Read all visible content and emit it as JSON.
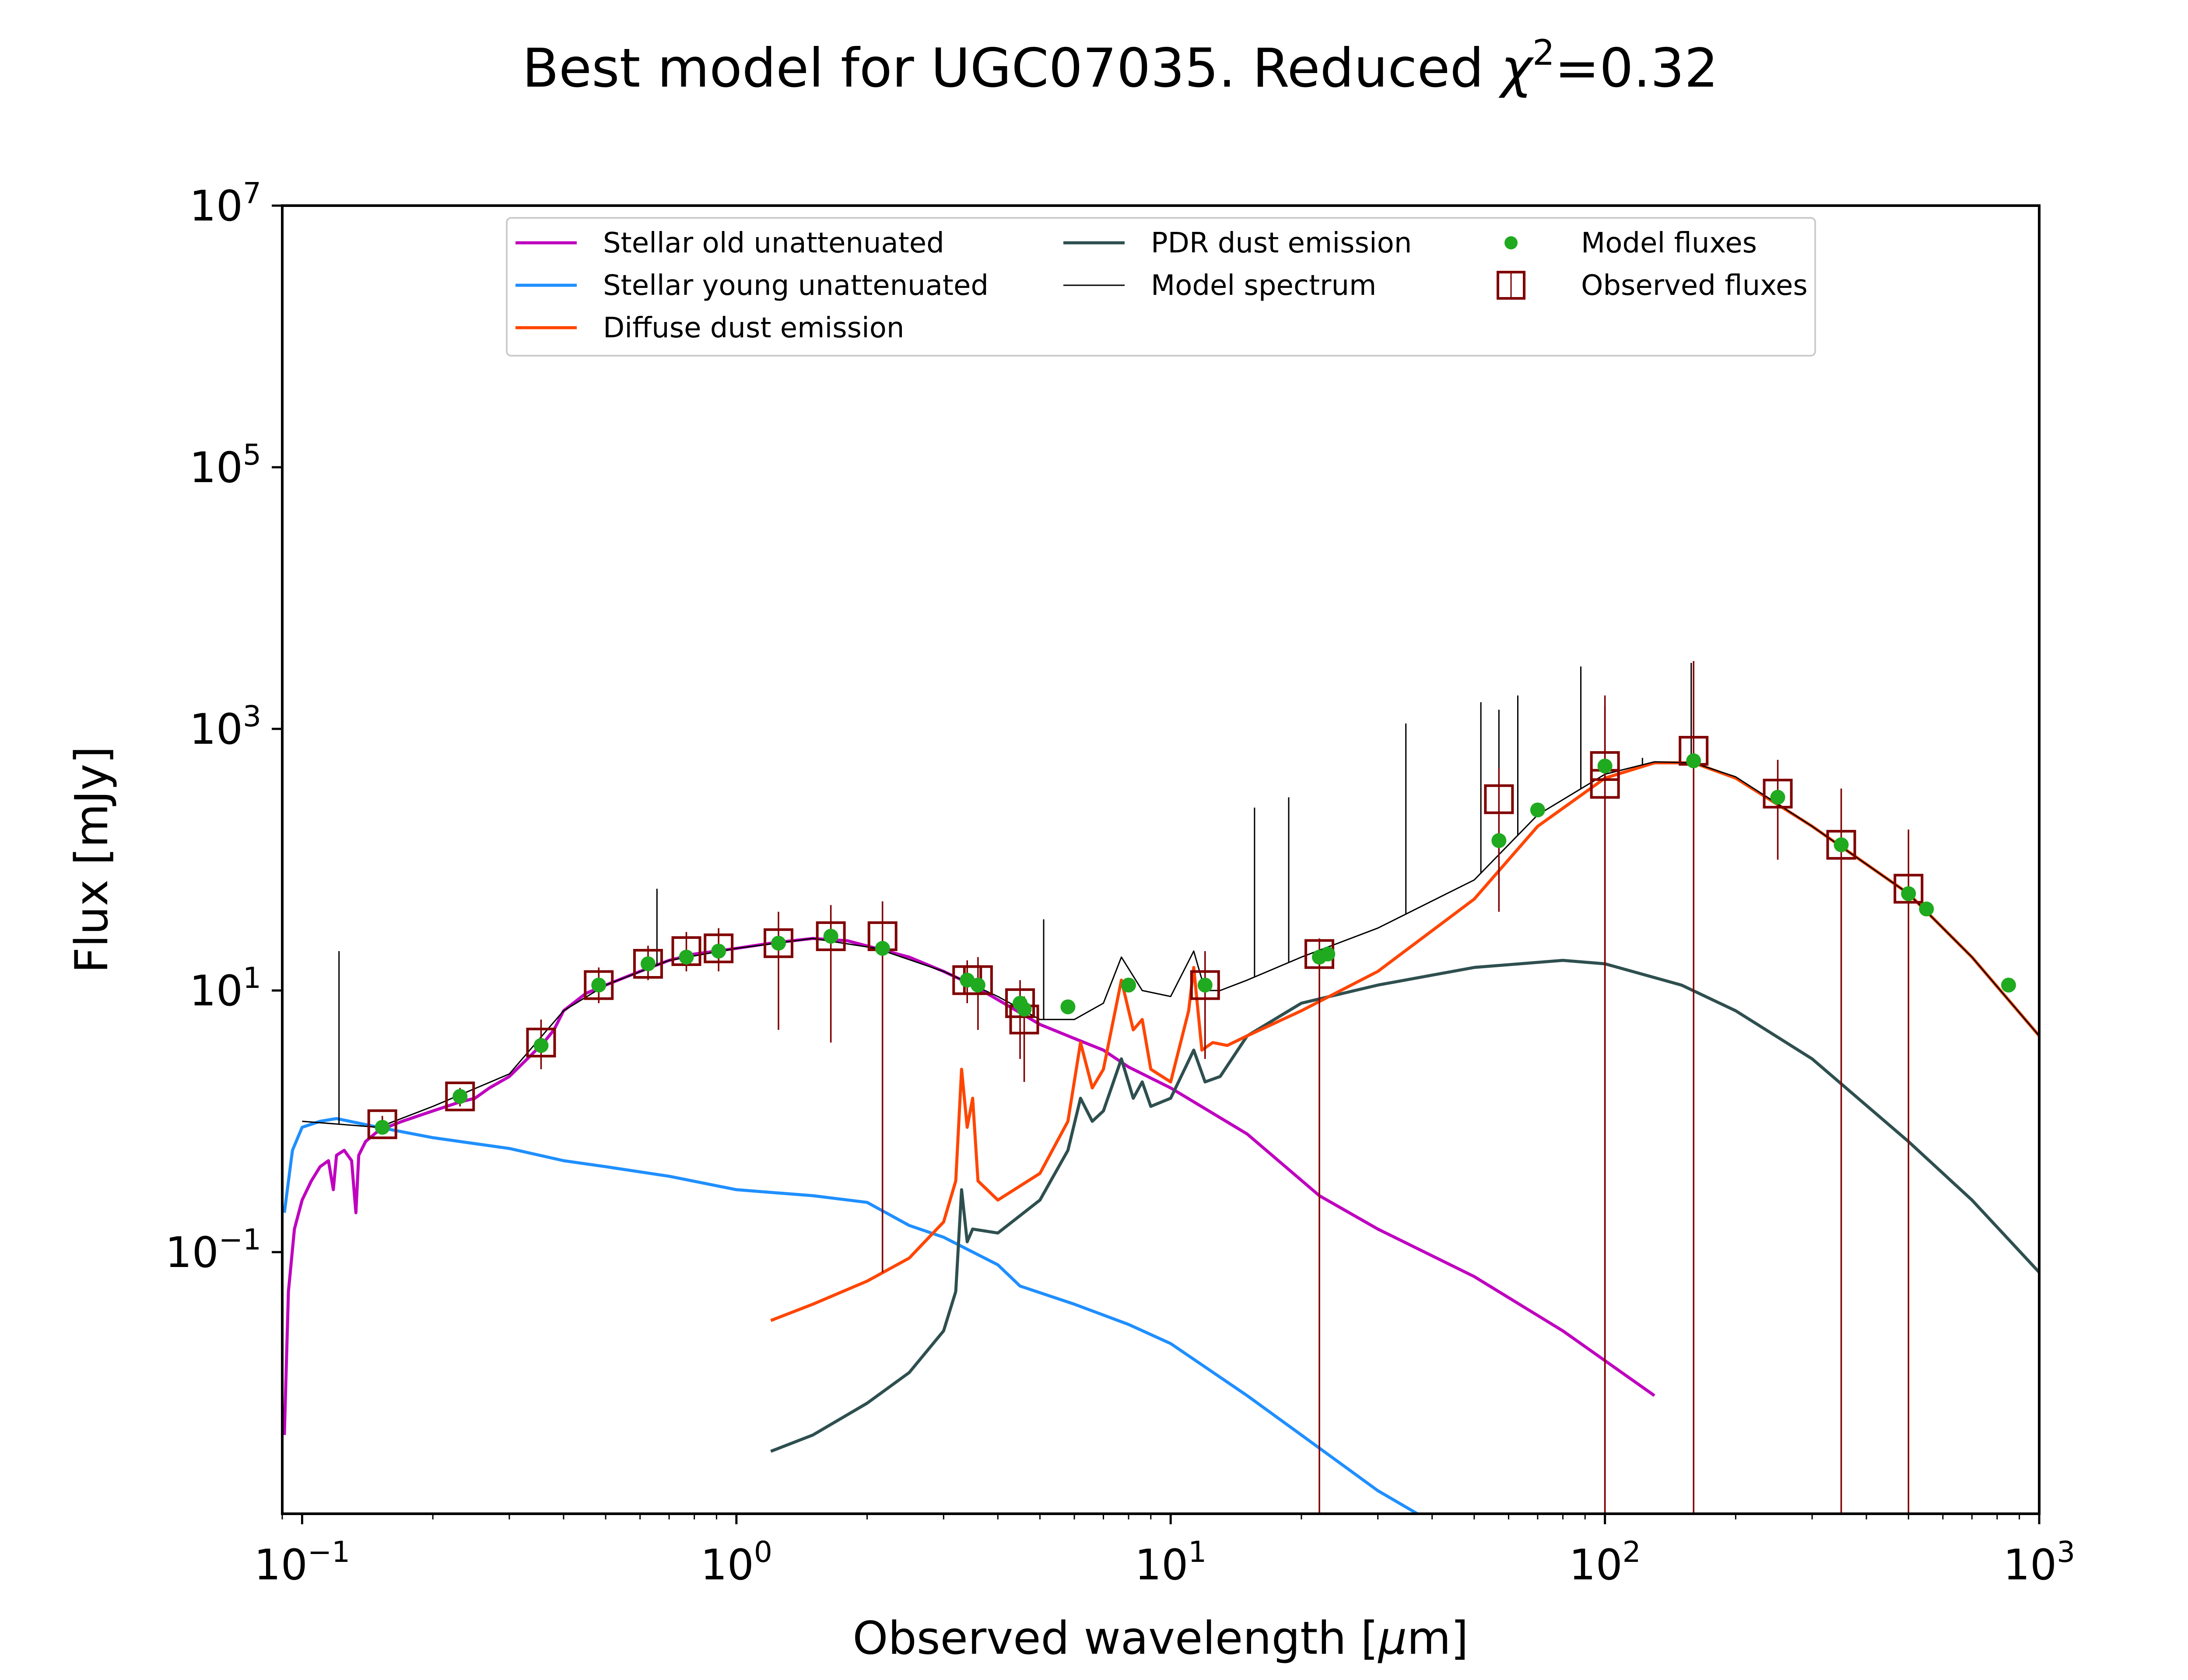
{
  "chart_data": {
    "type": "line",
    "title": "Best model for UGC07035. Reduced χ²=0.32",
    "title_parts": {
      "prefix": "Best model for UGC07035. Reduced ",
      "chi": "χ",
      "sup": "2",
      "suffix": "=0.32"
    },
    "xlabel": "Observed wavelength [μm]",
    "xlabel_parts": {
      "prefix": "Observed wavelength [",
      "mu": "μ",
      "suffix": "m]"
    },
    "ylabel": "Flux [mJy]",
    "xscale": "log",
    "yscale": "log",
    "xlim": [
      0.09,
      1000
    ],
    "ylim": [
      0.001,
      10000000
    ],
    "grid": false,
    "legend_placement": "top-center",
    "x_ticks": [
      {
        "base": "10",
        "exp": "−1",
        "value": 0.1
      },
      {
        "base": "10",
        "exp": "0",
        "value": 1
      },
      {
        "base": "10",
        "exp": "1",
        "value": 10
      },
      {
        "base": "10",
        "exp": "2",
        "value": 100
      },
      {
        "base": "10",
        "exp": "3",
        "value": 1000
      }
    ],
    "y_ticks": [
      {
        "base": "10",
        "exp": "−1",
        "value": 0.1
      },
      {
        "base": "10",
        "exp": "1",
        "value": 10
      },
      {
        "base": "10",
        "exp": "3",
        "value": 1000
      },
      {
        "base": "10",
        "exp": "5",
        "value": 100000
      },
      {
        "base": "10",
        "exp": "7",
        "value": 10000000
      }
    ],
    "series": [
      {
        "name": "Stellar old unattenuated",
        "kind": "line",
        "color": "#bf00bf",
        "points": [
          [
            0.091,
            0.004
          ],
          [
            0.093,
            0.05
          ],
          [
            0.096,
            0.15
          ],
          [
            0.1,
            0.25
          ],
          [
            0.105,
            0.35
          ],
          [
            0.11,
            0.45
          ],
          [
            0.115,
            0.5
          ],
          [
            0.118,
            0.3
          ],
          [
            0.12,
            0.55
          ],
          [
            0.125,
            0.6
          ],
          [
            0.13,
            0.5
          ],
          [
            0.133,
            0.2
          ],
          [
            0.135,
            0.55
          ],
          [
            0.14,
            0.7
          ],
          [
            0.15,
            0.85
          ],
          [
            0.17,
            1.0
          ],
          [
            0.2,
            1.2
          ],
          [
            0.23,
            1.4
          ],
          [
            0.25,
            1.5
          ],
          [
            0.27,
            1.8
          ],
          [
            0.3,
            2.2
          ],
          [
            0.33,
            3.0
          ],
          [
            0.36,
            4.0
          ],
          [
            0.38,
            5.0
          ],
          [
            0.4,
            7.0
          ],
          [
            0.45,
            9.5
          ],
          [
            0.5,
            11
          ],
          [
            0.6,
            14
          ],
          [
            0.7,
            17
          ],
          [
            0.8,
            19
          ],
          [
            1.0,
            21
          ],
          [
            1.2,
            23
          ],
          [
            1.5,
            25
          ],
          [
            1.8,
            24
          ],
          [
            2.1,
            21
          ],
          [
            2.5,
            18
          ],
          [
            3.0,
            14
          ],
          [
            3.5,
            11
          ],
          [
            4.0,
            8.5
          ],
          [
            5.0,
            5.5
          ],
          [
            6.0,
            4.3
          ],
          [
            7.0,
            3.5
          ],
          [
            8.0,
            2.6
          ],
          [
            10,
            1.8
          ],
          [
            15,
            0.8
          ],
          [
            22,
            0.27
          ],
          [
            30,
            0.15
          ],
          [
            50,
            0.065
          ],
          [
            80,
            0.025
          ],
          [
            130,
            0.008
          ]
        ]
      },
      {
        "name": "Stellar young unattenuated",
        "kind": "line",
        "color": "#1f8fff",
        "points": [
          [
            0.091,
            0.2
          ],
          [
            0.095,
            0.6
          ],
          [
            0.1,
            0.9
          ],
          [
            0.11,
            1.0
          ],
          [
            0.12,
            1.05
          ],
          [
            0.15,
            0.9
          ],
          [
            0.2,
            0.75
          ],
          [
            0.3,
            0.62
          ],
          [
            0.4,
            0.5
          ],
          [
            0.5,
            0.45
          ],
          [
            0.7,
            0.38
          ],
          [
            1.0,
            0.3
          ],
          [
            1.5,
            0.27
          ],
          [
            2.0,
            0.24
          ],
          [
            2.5,
            0.16
          ],
          [
            3.0,
            0.13
          ],
          [
            4.0,
            0.08
          ],
          [
            4.5,
            0.055
          ],
          [
            6.0,
            0.04
          ],
          [
            8.0,
            0.028
          ],
          [
            10,
            0.02
          ],
          [
            15,
            0.008
          ],
          [
            20,
            0.004
          ],
          [
            30,
            0.0015
          ],
          [
            37,
            0.001
          ]
        ]
      },
      {
        "name": "Diffuse dust emission",
        "kind": "line",
        "color": "#ff4500",
        "points": [
          [
            1.2,
            0.03
          ],
          [
            1.5,
            0.04
          ],
          [
            2.0,
            0.06
          ],
          [
            2.5,
            0.09
          ],
          [
            3.0,
            0.17
          ],
          [
            3.2,
            0.35
          ],
          [
            3.3,
            2.5
          ],
          [
            3.4,
            0.9
          ],
          [
            3.5,
            1.5
          ],
          [
            3.6,
            0.35
          ],
          [
            4.0,
            0.25
          ],
          [
            5.0,
            0.4
          ],
          [
            5.8,
            1.0
          ],
          [
            6.2,
            4.0
          ],
          [
            6.6,
            1.8
          ],
          [
            7.0,
            2.5
          ],
          [
            7.7,
            12
          ],
          [
            8.2,
            5.0
          ],
          [
            8.6,
            6.0
          ],
          [
            9.0,
            2.5
          ],
          [
            10,
            2.0
          ],
          [
            11.0,
            7.0
          ],
          [
            11.3,
            15
          ],
          [
            11.8,
            3.5
          ],
          [
            12.5,
            4.0
          ],
          [
            13.5,
            3.8
          ],
          [
            15,
            4.5
          ],
          [
            20,
            7.0
          ],
          [
            30,
            14
          ],
          [
            50,
            50
          ],
          [
            70,
            180
          ],
          [
            100,
            420
          ],
          [
            130,
            550
          ],
          [
            160,
            550
          ],
          [
            200,
            420
          ],
          [
            300,
            180
          ],
          [
            500,
            55
          ],
          [
            700,
            18
          ],
          [
            1000,
            4.5
          ]
        ]
      },
      {
        "name": "PDR dust emission",
        "kind": "line",
        "color": "#2f4f4f",
        "points": [
          [
            1.2,
            0.003
          ],
          [
            1.5,
            0.004
          ],
          [
            2.0,
            0.007
          ],
          [
            2.5,
            0.012
          ],
          [
            3.0,
            0.025
          ],
          [
            3.2,
            0.05
          ],
          [
            3.3,
            0.3
          ],
          [
            3.4,
            0.12
          ],
          [
            3.5,
            0.15
          ],
          [
            4.0,
            0.14
          ],
          [
            5.0,
            0.25
          ],
          [
            5.8,
            0.6
          ],
          [
            6.2,
            1.5
          ],
          [
            6.6,
            1.0
          ],
          [
            7.0,
            1.2
          ],
          [
            7.7,
            3.0
          ],
          [
            8.2,
            1.5
          ],
          [
            8.6,
            2.0
          ],
          [
            9.0,
            1.3
          ],
          [
            10,
            1.5
          ],
          [
            11.3,
            3.5
          ],
          [
            12,
            2.0
          ],
          [
            13,
            2.2
          ],
          [
            15,
            4.5
          ],
          [
            20,
            8.0
          ],
          [
            30,
            11
          ],
          [
            50,
            15
          ],
          [
            80,
            17
          ],
          [
            100,
            16
          ],
          [
            150,
            11
          ],
          [
            200,
            7.0
          ],
          [
            300,
            3.0
          ],
          [
            500,
            0.7
          ],
          [
            700,
            0.25
          ],
          [
            1000,
            0.07
          ]
        ]
      },
      {
        "name": "Model spectrum",
        "kind": "line",
        "color": "#000000",
        "points": [
          [
            0.1,
            1.0
          ],
          [
            0.15,
            0.9
          ],
          [
            0.2,
            1.3
          ],
          [
            0.3,
            2.3
          ],
          [
            0.4,
            7.0
          ],
          [
            0.5,
            11
          ],
          [
            0.7,
            17
          ],
          [
            1.0,
            21
          ],
          [
            1.5,
            25
          ],
          [
            2.1,
            21
          ],
          [
            3.0,
            14
          ],
          [
            4.0,
            9.0
          ],
          [
            5.0,
            6.0
          ],
          [
            6.0,
            6.0
          ],
          [
            7.0,
            8.0
          ],
          [
            7.7,
            18
          ],
          [
            8.6,
            10
          ],
          [
            10,
            9.0
          ],
          [
            11.3,
            20
          ],
          [
            12,
            10
          ],
          [
            13,
            10
          ],
          [
            15,
            12
          ],
          [
            20,
            18
          ],
          [
            30,
            30
          ],
          [
            50,
            70
          ],
          [
            70,
            220
          ],
          [
            100,
            450
          ],
          [
            130,
            560
          ],
          [
            160,
            550
          ],
          [
            200,
            430
          ],
          [
            300,
            180
          ],
          [
            500,
            55
          ],
          [
            700,
            18
          ],
          [
            1000,
            4.5
          ]
        ]
      }
    ],
    "emission_lines": [
      [
        0.1216,
        20
      ],
      [
        0.6563,
        60
      ],
      [
        5.1,
        35
      ],
      [
        15.6,
        250
      ],
      [
        18.7,
        300
      ],
      [
        34.8,
        1100
      ],
      [
        51.8,
        1600
      ],
      [
        57,
        1400
      ],
      [
        63,
        1800
      ],
      [
        88,
        3000
      ],
      [
        122,
        600
      ],
      [
        158,
        3200
      ]
    ],
    "model_fluxes": {
      "name": "Model fluxes",
      "color": "#1faa1f",
      "points": [
        [
          0.153,
          0.9
        ],
        [
          0.231,
          1.55
        ],
        [
          0.355,
          3.8
        ],
        [
          0.482,
          11
        ],
        [
          0.626,
          16
        ],
        [
          0.767,
          18
        ],
        [
          0.91,
          20
        ],
        [
          1.25,
          23
        ],
        [
          1.65,
          26
        ],
        [
          2.17,
          21
        ],
        [
          3.4,
          12
        ],
        [
          3.6,
          11
        ],
        [
          4.5,
          8.0
        ],
        [
          4.6,
          7.2
        ],
        [
          5.8,
          7.5
        ],
        [
          8.0,
          11
        ],
        [
          12,
          11
        ],
        [
          22,
          18
        ],
        [
          23,
          19
        ],
        [
          57,
          140
        ],
        [
          70,
          240
        ],
        [
          100,
          520
        ],
        [
          160,
          570
        ],
        [
          250,
          300
        ],
        [
          350,
          130
        ],
        [
          500,
          55
        ],
        [
          550,
          42
        ],
        [
          850,
          11
        ]
      ]
    },
    "observed_fluxes": {
      "name": "Observed fluxes",
      "color": "#800000",
      "points": [
        {
          "x": 0.153,
          "y": 0.95,
          "lo": 0.8,
          "hi": 1.1
        },
        {
          "x": 0.231,
          "y": 1.55,
          "lo": 1.3,
          "hi": 1.8
        },
        {
          "x": 0.355,
          "y": 4.0,
          "lo": 2.5,
          "hi": 6.0
        },
        {
          "x": 0.482,
          "y": 11,
          "lo": 8,
          "hi": 15
        },
        {
          "x": 0.626,
          "y": 16,
          "lo": 12,
          "hi": 22
        },
        {
          "x": 0.767,
          "y": 20,
          "lo": 14,
          "hi": 28
        },
        {
          "x": 0.91,
          "y": 21,
          "lo": 14,
          "hi": 30
        },
        {
          "x": 1.25,
          "y": 23,
          "lo": 5,
          "hi": 40
        },
        {
          "x": 1.65,
          "y": 26,
          "lo": 4,
          "hi": 45
        },
        {
          "x": 2.17,
          "y": 26,
          "lo": 0.07,
          "hi": 48
        },
        {
          "x": 3.4,
          "y": 12,
          "lo": 8,
          "hi": 17
        },
        {
          "x": 3.6,
          "y": 12,
          "lo": 5,
          "hi": 18
        },
        {
          "x": 4.5,
          "y": 8.0,
          "lo": 3,
          "hi": 12
        },
        {
          "x": 4.6,
          "y": 6.0,
          "lo": 2,
          "hi": 9
        },
        {
          "x": 12,
          "y": 11,
          "lo": 3,
          "hi": 20
        },
        {
          "x": 22,
          "y": 19,
          "lo": 0.001,
          "hi": 25
        },
        {
          "x": 57,
          "y": 290,
          "lo": 40,
          "hi": 500
        },
        {
          "x": 100,
          "y": 380,
          "lo": 0.001,
          "hi": 1500
        },
        {
          "x": 100,
          "y": 520,
          "lo": 0.001,
          "hi": 1800
        },
        {
          "x": 160,
          "y": 680,
          "lo": 0.001,
          "hi": 3300
        },
        {
          "x": 250,
          "y": 320,
          "lo": 100,
          "hi": 580
        },
        {
          "x": 350,
          "y": 130,
          "lo": 0.001,
          "hi": 350
        },
        {
          "x": 500,
          "y": 60,
          "lo": 0.001,
          "hi": 170
        }
      ]
    },
    "legend": [
      {
        "label": "Stellar old unattenuated",
        "kind": "line",
        "color": "#bf00bf"
      },
      {
        "label": "Stellar young unattenuated",
        "kind": "line",
        "color": "#1f8fff"
      },
      {
        "label": "Diffuse dust emission",
        "kind": "line",
        "color": "#ff4500"
      },
      {
        "label": "PDR dust emission",
        "kind": "line",
        "color": "#2f4f4f"
      },
      {
        "label": "Model spectrum",
        "kind": "thinline",
        "color": "#000000"
      },
      {
        "label": "Model fluxes",
        "kind": "dot",
        "color": "#1faa1f"
      },
      {
        "label": "Observed fluxes",
        "kind": "square",
        "color": "#800000"
      }
    ]
  }
}
